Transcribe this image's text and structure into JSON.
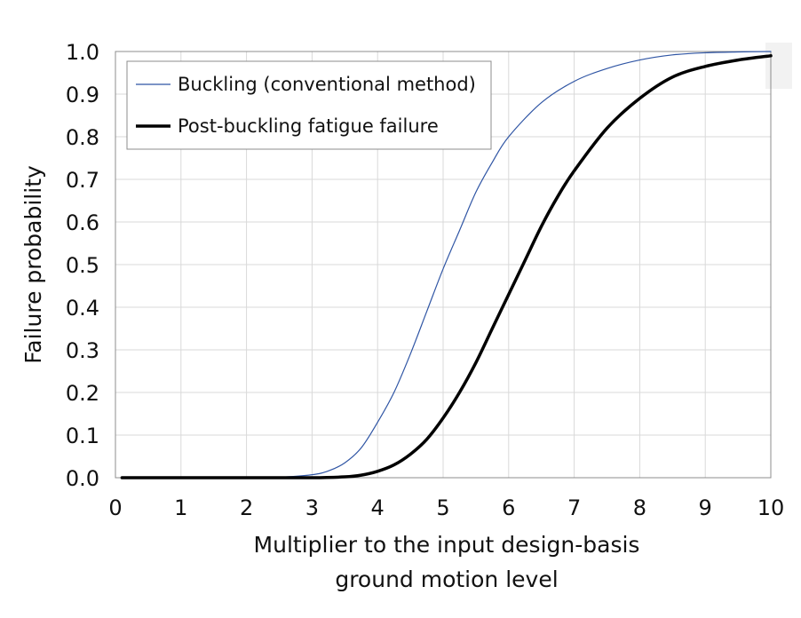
{
  "chart_data": {
    "type": "line",
    "title": "",
    "xlabel_lines": [
      "Multiplier to the input design-basis",
      "ground motion level"
    ],
    "ylabel": "Failure probability",
    "xlim": [
      0,
      10
    ],
    "ylim": [
      0,
      1
    ],
    "x_ticks": [
      "0",
      "1",
      "2",
      "3",
      "4",
      "5",
      "6",
      "7",
      "8",
      "9",
      "10"
    ],
    "y_ticks": [
      "0.0",
      "0.1",
      "0.2",
      "0.3",
      "0.4",
      "0.5",
      "0.6",
      "0.7",
      "0.8",
      "0.9",
      "1.0"
    ],
    "grid": true,
    "legend_position": "top-left",
    "series": [
      {
        "name": "Buckling (conventional method)",
        "color": "#2f55a4",
        "line_style": "thin",
        "x": [
          0.1,
          1,
          2,
          2.5,
          3,
          3.25,
          3.5,
          3.75,
          4,
          4.25,
          4.5,
          4.75,
          5,
          5.25,
          5.5,
          5.75,
          6,
          6.5,
          7,
          7.5,
          8,
          8.5,
          9,
          9.5,
          10
        ],
        "y": [
          0,
          0,
          0,
          0.001,
          0.007,
          0.016,
          0.035,
          0.07,
          0.13,
          0.2,
          0.29,
          0.39,
          0.49,
          0.58,
          0.67,
          0.74,
          0.8,
          0.88,
          0.93,
          0.96,
          0.98,
          0.992,
          0.997,
          0.999,
          1.0
        ]
      },
      {
        "name": "Post-buckling fatigue failure",
        "color": "#000000",
        "line_style": "thick",
        "x": [
          0.1,
          1,
          2,
          3,
          3.5,
          3.75,
          4,
          4.25,
          4.5,
          4.75,
          5,
          5.25,
          5.5,
          5.75,
          6,
          6.25,
          6.5,
          6.75,
          7,
          7.5,
          8,
          8.5,
          9,
          9.5,
          10
        ],
        "y": [
          0,
          0,
          0,
          0,
          0.002,
          0.006,
          0.015,
          0.03,
          0.055,
          0.09,
          0.14,
          0.2,
          0.27,
          0.35,
          0.43,
          0.51,
          0.59,
          0.66,
          0.72,
          0.82,
          0.89,
          0.94,
          0.965,
          0.98,
          0.99
        ]
      }
    ]
  }
}
